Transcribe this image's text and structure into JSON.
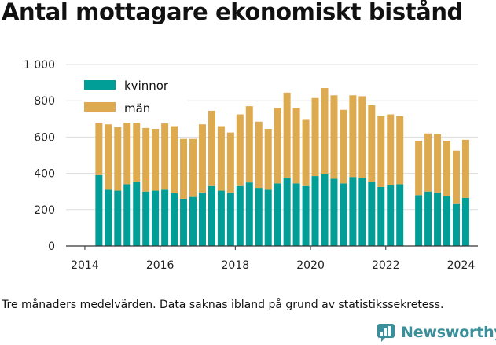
{
  "title": "Antal mottagare ekonomiskt bistånd",
  "caption": "Tre månaders medelvärden. Data saknas ibland på grund av statistikssekretess.",
  "brand": {
    "name": "Newsworthy",
    "color": "#3a8f9b"
  },
  "colors": {
    "kvinnor": "#009e96",
    "man": "#deaa50",
    "grid": "#dddddd",
    "axis": "#333333"
  },
  "chart_data": {
    "type": "bar",
    "stacked": true,
    "title": "Antal mottagare ekonomiskt bistånd",
    "ylim": [
      0,
      1000
    ],
    "yticks": [
      0,
      200,
      400,
      600,
      800,
      1000
    ],
    "ytick_labels": [
      "0",
      "200",
      "400",
      "600",
      "800",
      "1 000"
    ],
    "xlim": [
      2013.5,
      2024.45
    ],
    "xticks": [
      2014,
      2016,
      2018,
      2020,
      2022,
      2024
    ],
    "xtick_labels": [
      "2014",
      "2016",
      "2018",
      "2020",
      "2022",
      "2024"
    ],
    "grid": true,
    "legend_position": "top-left",
    "x": [
      2014.375,
      2014.625,
      2014.875,
      2015.125,
      2015.375,
      2015.625,
      2015.875,
      2016.125,
      2016.375,
      2016.625,
      2016.875,
      2017.125,
      2017.375,
      2017.625,
      2017.875,
      2018.125,
      2018.375,
      2018.625,
      2018.875,
      2019.125,
      2019.375,
      2019.625,
      2019.875,
      2020.125,
      2020.375,
      2020.625,
      2020.875,
      2021.125,
      2021.375,
      2021.625,
      2021.875,
      2022.125,
      2022.375,
      2022.875,
      2023.125,
      2023.375,
      2023.625,
      2023.875,
      2024.125
    ],
    "series": [
      {
        "name": "kvinnor",
        "color": "#009e96",
        "values": [
          390,
          310,
          305,
          340,
          355,
          300,
          305,
          310,
          290,
          260,
          270,
          295,
          330,
          305,
          295,
          330,
          350,
          320,
          310,
          345,
          375,
          345,
          330,
          385,
          395,
          370,
          345,
          380,
          375,
          355,
          325,
          335,
          340,
          280,
          300,
          295,
          275,
          235,
          265
        ]
      },
      {
        "name": "män",
        "color": "#deaa50",
        "values": [
          295,
          360,
          350,
          340,
          330,
          350,
          340,
          365,
          370,
          330,
          320,
          375,
          415,
          355,
          330,
          395,
          420,
          365,
          335,
          415,
          470,
          415,
          365,
          430,
          475,
          460,
          405,
          450,
          450,
          420,
          390,
          390,
          375,
          300,
          320,
          320,
          305,
          290,
          320
        ]
      }
    ]
  }
}
